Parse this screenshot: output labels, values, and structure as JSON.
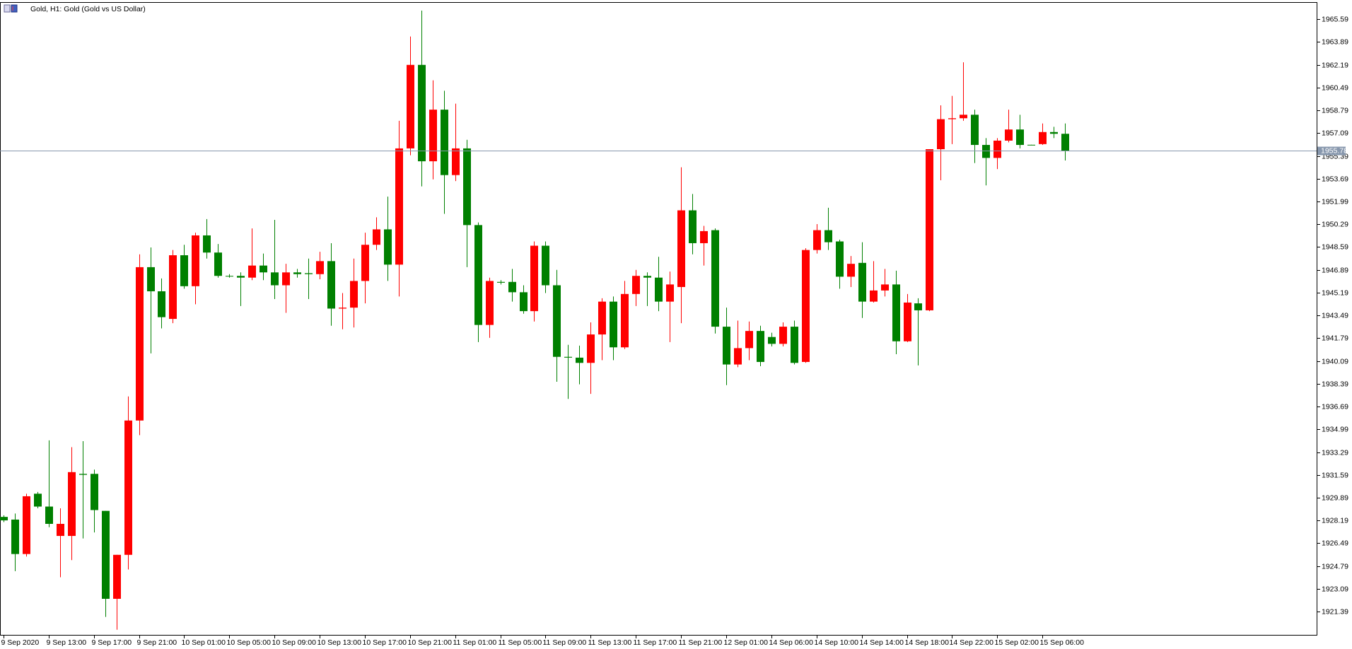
{
  "chart_data": {
    "type": "candlestick",
    "title": "Gold, H1:  Gold (Gold vs US Dollar)",
    "categories": [
      "9 Sep 2020",
      null,
      null,
      null,
      "9 Sep 13:00",
      null,
      null,
      null,
      "9 Sep 17:00",
      null,
      null,
      null,
      "9 Sep 21:00",
      null,
      null,
      null,
      "10 Sep 01:00",
      null,
      null,
      null,
      "10 Sep 05:00",
      null,
      null,
      null,
      "10 Sep 09:00",
      null,
      null,
      null,
      "10 Sep 13:00",
      null,
      null,
      null,
      "10 Sep 17:00",
      null,
      null,
      null,
      "10 Sep 21:00",
      null,
      null,
      null,
      "11 Sep 01:00",
      null,
      null,
      null,
      "11 Sep 05:00",
      null,
      null,
      null,
      "11 Sep 09:00",
      null,
      null,
      null,
      "11 Sep 13:00",
      null,
      null,
      null,
      "11 Sep 17:00",
      null,
      null,
      null,
      "11 Sep 21:00",
      null,
      null,
      null,
      "12 Sep 01:00",
      null,
      null,
      null,
      "14 Sep 06:00",
      null,
      null,
      null,
      "14 Sep 10:00",
      null,
      null,
      null,
      "14 Sep 14:00",
      null,
      null,
      null,
      "14 Sep 18:00",
      null,
      null,
      null,
      "14 Sep 22:00",
      null,
      null,
      null,
      "15 Sep 02:00",
      null,
      null,
      null,
      "15 Sep 06:00",
      null,
      null
    ],
    "open": [
      1928.46,
      1928.26,
      1925.69,
      1930.19,
      1929.23,
      1927.04,
      1927.04,
      1931.67,
      1931.67,
      1928.91,
      1922.35,
      1925.63,
      1935.65,
      1947.09,
      1945.29,
      1943.23,
      1947.98,
      1945.67,
      1949.46,
      1948.18,
      1946.44,
      1946.44,
      1946.31,
      1947.21,
      1946.7,
      1945.74,
      1946.7,
      1946.64,
      1946.57,
      1947.54,
      1944.0,
      1944.07,
      1946.06,
      1948.76,
      1949.91,
      1947.28,
      1955.95,
      1962.18,
      1954.99,
      1958.84,
      1953.96,
      1955.95,
      1950.23,
      1942.78,
      1945.99,
      1945.99,
      1945.22,
      1943.81,
      1948.69,
      1945.74,
      1940.4,
      1940.34,
      1939.95,
      1942.07,
      1944.52,
      1941.11,
      1945.09,
      1946.44,
      1946.31,
      1944.52,
      1945.61,
      1951.33,
      1948.88,
      1949.85,
      1942.65,
      1939.83,
      1941.05,
      1942.33,
      1941.88,
      1941.37,
      1942.65,
      1940.02,
      1948.37,
      1949.85,
      1949.01,
      1946.38,
      1947.41,
      1944.52,
      1945.35,
      1945.8,
      1941.56,
      1944.39,
      1943.87,
      1955.89,
      1958.13,
      1958.2,
      1958.46,
      1956.21,
      1955.24,
      1956.53,
      1957.36,
      1956.22,
      1956.27,
      1957.17,
      1957.04
    ],
    "high": [
      1928.58,
      1928.71,
      1930.19,
      1930.32,
      1934.17,
      1929.1,
      1933.66,
      1934.11,
      1931.99,
      1928.91,
      1925.63,
      1937.45,
      1948.05,
      1948.56,
      1946.25,
      1948.37,
      1948.76,
      1949.66,
      1950.68,
      1948.82,
      1946.57,
      1946.7,
      1949.98,
      1948.11,
      1950.62,
      1947.34,
      1946.96,
      1947.73,
      1948.24,
      1948.88,
      1945.16,
      1947.73,
      1949.66,
      1950.81,
      1952.35,
      1958.01,
      1964.3,
      1966.23,
      1961.03,
      1960.25,
      1959.29,
      1956.59,
      1950.43,
      1946.31,
      1946.12,
      1946.96,
      1945.74,
      1949.01,
      1949.01,
      1946.89,
      1941.3,
      1941.24,
      1942.97,
      1944.77,
      1944.9,
      1946.06,
      1946.89,
      1946.7,
      1947.86,
      1946.76,
      1954.54,
      1952.55,
      1950.17,
      1949.98,
      1944.07,
      1943.1,
      1943.04,
      1942.72,
      1942.2,
      1942.97,
      1943.1,
      1948.5,
      1950.3,
      1951.52,
      1949.14,
      1947.92,
      1948.95,
      1947.54,
      1946.96,
      1946.83,
      1945.09,
      1944.77,
      1955.89,
      1959.16,
      1959.87,
      1962.37,
      1958.84,
      1956.72,
      1956.72,
      1958.84,
      1958.46,
      1956.22,
      1957.81,
      1957.56,
      1957.81
    ],
    "low": [
      1928.07,
      1924.41,
      1925.5,
      1929.1,
      1927.69,
      1923.96,
      1925.24,
      1926.85,
      1927.3,
      1921.0,
      1920.04,
      1924.54,
      1934.56,
      1940.66,
      1942.52,
      1942.91,
      1945.48,
      1944.32,
      1947.73,
      1946.31,
      1946.31,
      1944.19,
      1946.12,
      1946.12,
      1944.71,
      1943.68,
      1946.31,
      1944.71,
      1946.19,
      1942.72,
      1942.46,
      1942.59,
      1944.39,
      1948.37,
      1946.06,
      1944.9,
      1955.44,
      1953.12,
      1953.64,
      1951.07,
      1953.51,
      1947.09,
      1941.5,
      1941.82,
      1945.8,
      1944.52,
      1943.62,
      1943.04,
      1945.16,
      1938.54,
      1937.26,
      1938.35,
      1937.64,
      1940.15,
      1940.15,
      1940.98,
      1944.19,
      1944.19,
      1943.81,
      1941.5,
      1942.91,
      1948.05,
      1947.21,
      1942.14,
      1938.29,
      1939.63,
      1940.15,
      1939.7,
      1941.18,
      1941.18,
      1939.83,
      1939.95,
      1948.11,
      1948.37,
      1945.48,
      1945.61,
      1943.3,
      1944.45,
      1944.9,
      1940.6,
      1941.5,
      1939.76,
      1943.81,
      1953.57,
      1956.27,
      1958.01,
      1954.86,
      1953.19,
      1954.41,
      1956.4,
      1955.95,
      1956.21,
      1956.21,
      1956.72,
      1955.05
    ],
    "close": [
      1928.2,
      1925.69,
      1930.0,
      1929.23,
      1927.94,
      1927.94,
      1931.8,
      1931.6,
      1928.97,
      1922.35,
      1925.63,
      1935.65,
      1947.09,
      1945.29,
      1943.36,
      1947.98,
      1945.67,
      1949.46,
      1948.18,
      1946.44,
      1946.44,
      1946.31,
      1947.21,
      1946.7,
      1945.74,
      1946.7,
      1946.57,
      1946.57,
      1947.54,
      1944.0,
      1944.07,
      1946.06,
      1948.76,
      1949.91,
      1947.28,
      1955.95,
      1962.18,
      1954.99,
      1958.84,
      1953.96,
      1955.95,
      1950.23,
      1942.78,
      1946.06,
      1945.93,
      1945.22,
      1943.81,
      1948.69,
      1945.74,
      1940.4,
      1940.34,
      1939.95,
      1942.07,
      1944.52,
      1941.11,
      1945.09,
      1946.44,
      1946.31,
      1944.52,
      1945.8,
      1951.33,
      1948.88,
      1949.78,
      1942.65,
      1939.83,
      1941.05,
      1942.33,
      1940.02,
      1941.37,
      1942.65,
      1939.95,
      1948.37,
      1949.85,
      1948.95,
      1946.38,
      1947.34,
      1944.52,
      1945.35,
      1945.8,
      1941.56,
      1944.45,
      1943.87,
      1955.89,
      1958.13,
      1958.2,
      1958.46,
      1956.21,
      1955.24,
      1956.53,
      1957.36,
      1956.21,
      1956.21,
      1957.17,
      1957.04,
      1955.78
    ],
    "up_color": "#ff0000",
    "down_color": "#008000",
    "current_price": 1955.78,
    "current_price_color": "#8797ad",
    "ylim": [
      1919.66,
      1966.81
    ],
    "yticks": [
      1921.39,
      1923.09,
      1924.79,
      1926.49,
      1928.19,
      1929.89,
      1931.59,
      1933.29,
      1934.99,
      1936.69,
      1938.39,
      1940.09,
      1941.79,
      1943.49,
      1945.19,
      1946.89,
      1948.59,
      1950.29,
      1951.99,
      1953.69,
      1955.39,
      1957.09,
      1958.79,
      1960.49,
      1962.19,
      1963.89,
      1965.59
    ],
    "grid": false
  }
}
